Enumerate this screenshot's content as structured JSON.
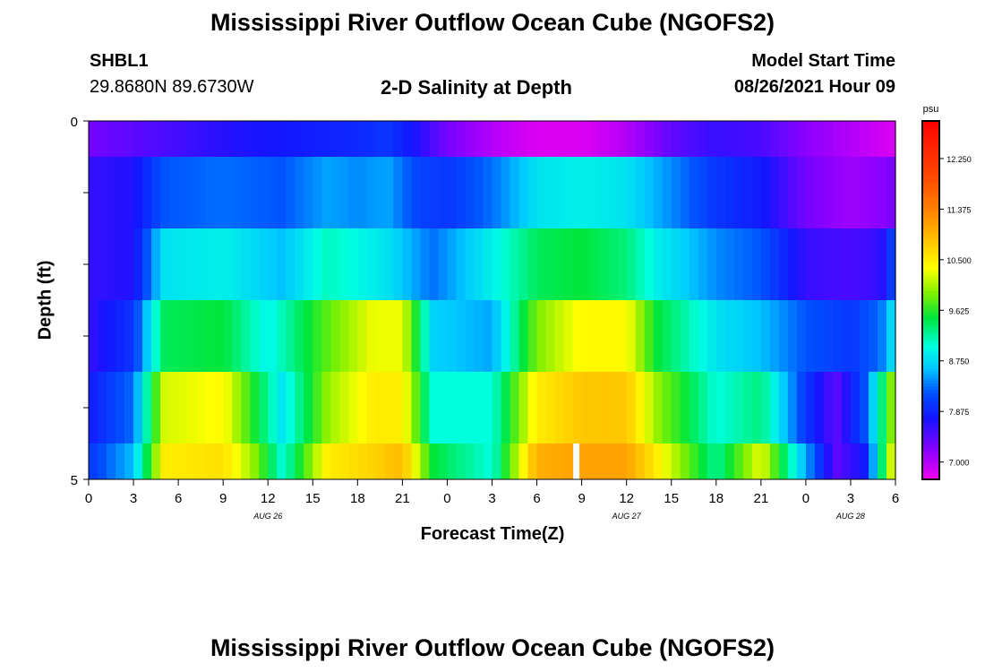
{
  "header": {
    "title": "Mississippi River Outflow Ocean Cube (NGOFS2)",
    "station_id": "SHBL1",
    "coordinates": "29.8680N  89.6730W",
    "plot_title": "2-D Salinity at Depth",
    "model_start_label": "Model Start Time",
    "model_start_value": "08/26/2021 Hour 09"
  },
  "footer": {
    "title": "Mississippi River Outflow Ocean Cube (NGOFS2)"
  },
  "chart_data": {
    "type": "heatmap",
    "xlabel": "Forecast Time(Z)",
    "ylabel": "Depth (ft)",
    "x_tick_labels": [
      "0",
      "3",
      "6",
      "9",
      "12",
      "15",
      "18",
      "21",
      "0",
      "3",
      "6",
      "9",
      "12",
      "15",
      "18",
      "21",
      "0",
      "3",
      "6"
    ],
    "x_range_hours": [
      0,
      54
    ],
    "date_labels": [
      {
        "label": "AUG 26",
        "hour": 12
      },
      {
        "label": "AUG 27",
        "hour": 36
      },
      {
        "label": "AUG 28",
        "hour": 51
      }
    ],
    "y_range": [
      0,
      5
    ],
    "y_tick_labels": [
      "0",
      "5"
    ],
    "colorbar": {
      "unit": "psu",
      "range": [
        6.7,
        12.9
      ],
      "tick_values": [
        12.25,
        11.375,
        10.5,
        9.625,
        8.75,
        7.875,
        7.0
      ],
      "tick_labels": [
        "12.250",
        "11.375",
        "10.500",
        "9.625",
        "8.750",
        "7.875",
        "7.000"
      ]
    },
    "layers": [
      "surface",
      "layer2",
      "layer3",
      "layer4",
      "layer5",
      "bottom"
    ],
    "salinity_anchors_by_layer": [
      [
        [
          0,
          7.3
        ],
        [
          5,
          7.5
        ],
        [
          10,
          7.7
        ],
        [
          14,
          7.8
        ],
        [
          18,
          7.9
        ],
        [
          20,
          8.0
        ],
        [
          22,
          7.7
        ],
        [
          24,
          7.3
        ],
        [
          27,
          7.0
        ],
        [
          30,
          6.8
        ],
        [
          33,
          6.8
        ],
        [
          36,
          7.0
        ],
        [
          39,
          7.4
        ],
        [
          42,
          7.6
        ],
        [
          45,
          7.5
        ],
        [
          48,
          7.2
        ],
        [
          51,
          7.0
        ],
        [
          54,
          6.8
        ]
      ],
      [
        [
          0,
          7.6
        ],
        [
          3,
          7.7
        ],
        [
          5,
          8.2
        ],
        [
          9,
          8.3
        ],
        [
          13,
          8.2
        ],
        [
          16,
          8.5
        ],
        [
          18,
          8.4
        ],
        [
          20,
          8.5
        ],
        [
          22,
          8.1
        ],
        [
          24,
          8.0
        ],
        [
          27,
          8.3
        ],
        [
          30,
          8.8
        ],
        [
          33,
          8.9
        ],
        [
          36,
          8.8
        ],
        [
          39,
          8.4
        ],
        [
          42,
          8.0
        ],
        [
          45,
          7.8
        ],
        [
          48,
          7.3
        ],
        [
          51,
          7.1
        ],
        [
          53,
          7.2
        ],
        [
          54,
          7.3
        ]
      ],
      [
        [
          0,
          7.6
        ],
        [
          3,
          7.7
        ],
        [
          5,
          8.8
        ],
        [
          9,
          8.9
        ],
        [
          13,
          8.6
        ],
        [
          16,
          9.1
        ],
        [
          20,
          8.8
        ],
        [
          23,
          8.3
        ],
        [
          27,
          8.9
        ],
        [
          30,
          9.4
        ],
        [
          33,
          9.5
        ],
        [
          36,
          9.3
        ],
        [
          38,
          8.9
        ],
        [
          42,
          8.4
        ],
        [
          45,
          8.2
        ],
        [
          48,
          7.6
        ],
        [
          51,
          7.5
        ],
        [
          53,
          7.6
        ],
        [
          54,
          8.2
        ]
      ],
      [
        [
          0,
          7.6
        ],
        [
          3,
          8.0
        ],
        [
          5,
          9.4
        ],
        [
          9,
          9.5
        ],
        [
          12,
          8.9
        ],
        [
          16,
          9.8
        ],
        [
          19,
          10.3
        ],
        [
          21,
          10.3
        ],
        [
          23,
          8.7
        ],
        [
          27,
          8.5
        ],
        [
          30,
          9.9
        ],
        [
          33,
          10.4
        ],
        [
          36,
          10.4
        ],
        [
          38,
          9.5
        ],
        [
          42,
          8.8
        ],
        [
          45,
          8.6
        ],
        [
          48,
          8.2
        ],
        [
          51,
          8.0
        ],
        [
          53,
          8.3
        ],
        [
          54,
          8.9
        ]
      ],
      [
        [
          0,
          7.8
        ],
        [
          3,
          8.3
        ],
        [
          5,
          10.2
        ],
        [
          9,
          10.4
        ],
        [
          11,
          9.6
        ],
        [
          13,
          8.8
        ],
        [
          16,
          10.0
        ],
        [
          19,
          10.5
        ],
        [
          21,
          10.5
        ],
        [
          23,
          9.0
        ],
        [
          27,
          9.0
        ],
        [
          30,
          10.5
        ],
        [
          33,
          10.8
        ],
        [
          36,
          10.8
        ],
        [
          38,
          10.0
        ],
        [
          42,
          9.0
        ],
        [
          45,
          9.3
        ],
        [
          48,
          8.0
        ],
        [
          50,
          7.4
        ],
        [
          52,
          8.2
        ],
        [
          54,
          10.2
        ]
      ],
      [
        [
          0,
          8.0
        ],
        [
          3,
          8.6
        ],
        [
          5,
          10.5
        ],
        [
          9,
          10.6
        ],
        [
          11,
          10.0
        ],
        [
          13,
          9.0
        ],
        [
          16,
          10.5
        ],
        [
          19,
          10.7
        ],
        [
          21,
          10.9
        ],
        [
          23,
          9.5
        ],
        [
          27,
          9.0
        ],
        [
          30,
          11.0
        ],
        [
          33,
          11.1
        ],
        [
          36,
          11.1
        ],
        [
          38,
          10.5
        ],
        [
          42,
          9.2
        ],
        [
          45,
          10.3
        ],
        [
          48,
          8.5
        ],
        [
          50,
          7.4
        ],
        [
          52,
          7.8
        ],
        [
          54,
          10.6
        ]
      ]
    ],
    "missing_cell": {
      "layer": 5,
      "hour_start": 32.4,
      "hour_end": 32.8
    }
  }
}
